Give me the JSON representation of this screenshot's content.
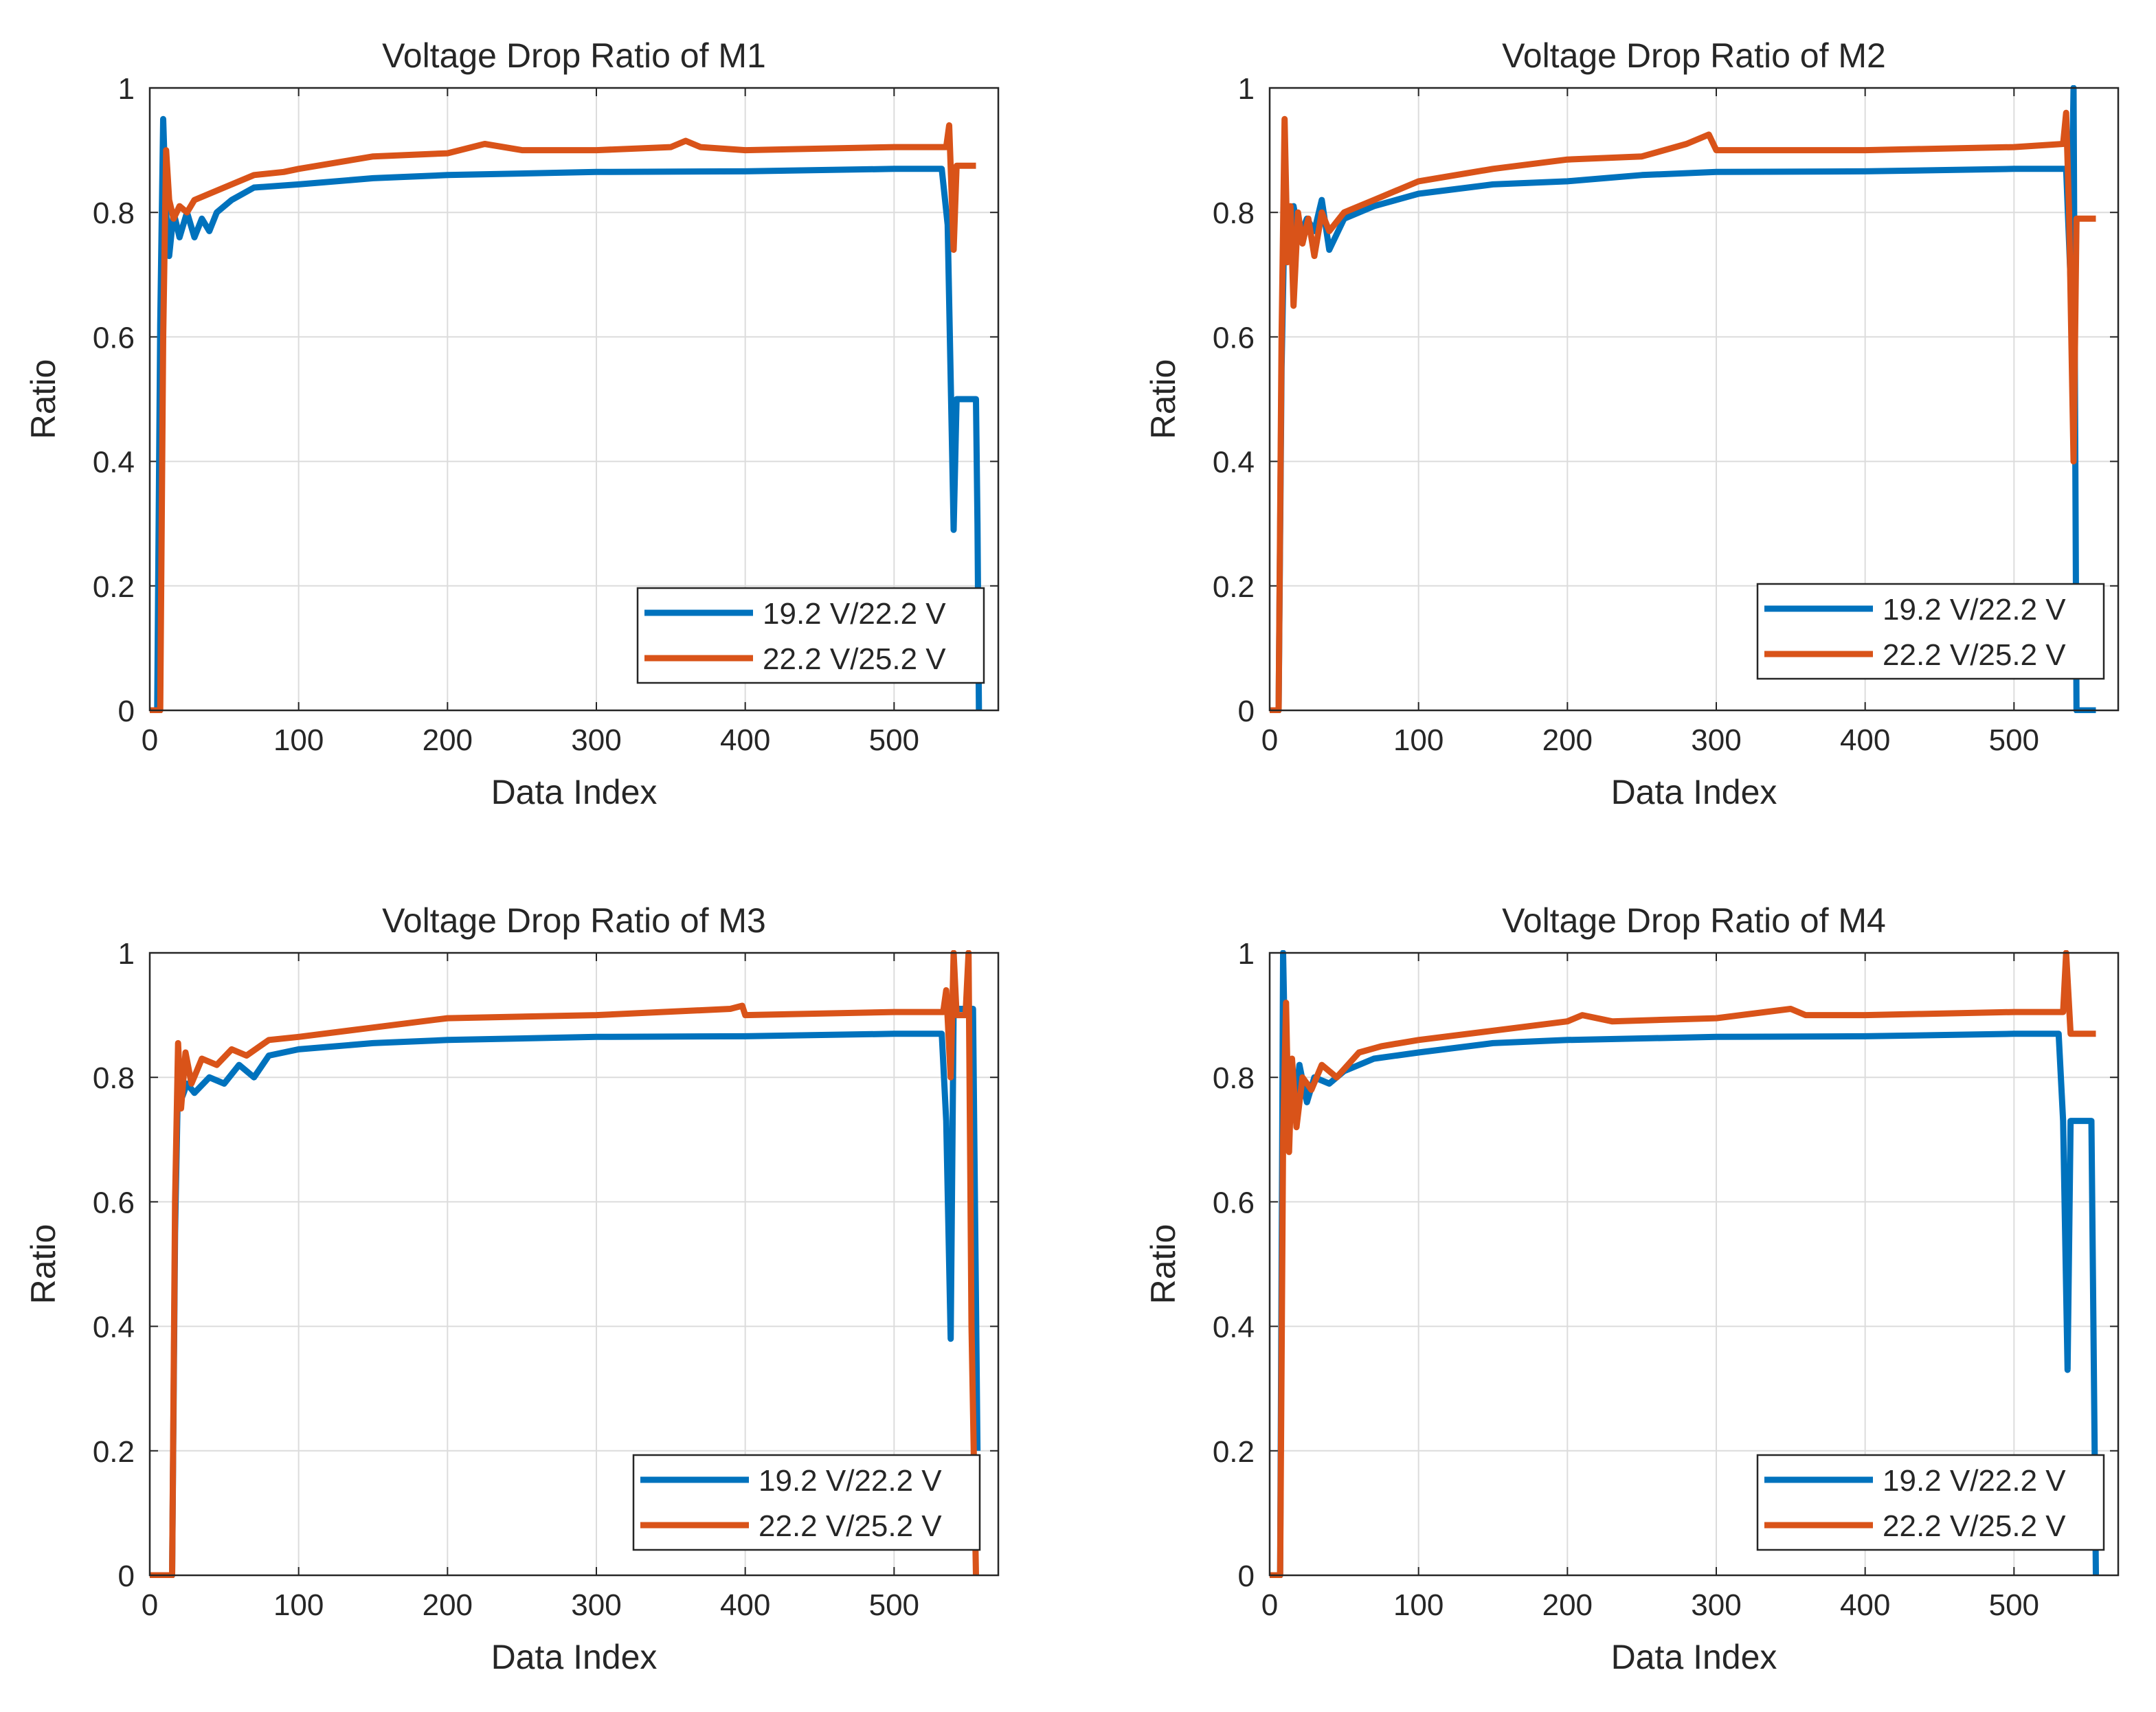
{
  "colors": {
    "series1": "#0072BD",
    "series2": "#D95319",
    "grid": "#DCDCDC",
    "axis": "#262626"
  },
  "chart_data": [
    {
      "type": "line",
      "title": "Voltage Drop Ratio of M1",
      "xlabel": "Data Index",
      "ylabel": "Ratio",
      "xlim": [
        0,
        570
      ],
      "ylim": [
        0,
        1
      ],
      "xticks": [
        "0",
        "100",
        "200",
        "300",
        "400",
        "500"
      ],
      "yticks": [
        "0",
        "0.2",
        "0.4",
        "0.6",
        "0.8",
        "1"
      ],
      "grid": true,
      "legend": "bottom-right",
      "series": [
        {
          "name": "19.2 V/22.2 V",
          "points": [
            [
              0,
              0
            ],
            [
              5,
              0
            ],
            [
              7,
              0.62
            ],
            [
              9,
              0.95
            ],
            [
              11,
              0.8
            ],
            [
              13,
              0.73
            ],
            [
              16,
              0.8
            ],
            [
              20,
              0.76
            ],
            [
              25,
              0.8
            ],
            [
              30,
              0.76
            ],
            [
              35,
              0.79
            ],
            [
              40,
              0.77
            ],
            [
              45,
              0.8
            ],
            [
              55,
              0.82
            ],
            [
              70,
              0.84
            ],
            [
              100,
              0.845
            ],
            [
              150,
              0.855
            ],
            [
              200,
              0.86
            ],
            [
              300,
              0.865
            ],
            [
              400,
              0.866
            ],
            [
              500,
              0.87
            ],
            [
              532,
              0.87
            ],
            [
              536,
              0.78
            ],
            [
              540,
              0.29
            ],
            [
              542,
              0.5
            ],
            [
              555,
              0.5
            ],
            [
              556,
              0.3
            ],
            [
              557,
              0
            ]
          ]
        },
        {
          "name": "22.2 V/25.2 V",
          "points": [
            [
              0,
              0
            ],
            [
              7,
              0
            ],
            [
              9,
              0.6
            ],
            [
              11,
              0.9
            ],
            [
              13,
              0.82
            ],
            [
              16,
              0.79
            ],
            [
              20,
              0.81
            ],
            [
              25,
              0.8
            ],
            [
              30,
              0.82
            ],
            [
              40,
              0.83
            ],
            [
              55,
              0.845
            ],
            [
              70,
              0.86
            ],
            [
              90,
              0.865
            ],
            [
              100,
              0.87
            ],
            [
              150,
              0.89
            ],
            [
              200,
              0.895
            ],
            [
              225,
              0.91
            ],
            [
              250,
              0.9
            ],
            [
              300,
              0.9
            ],
            [
              350,
              0.905
            ],
            [
              360,
              0.915
            ],
            [
              370,
              0.905
            ],
            [
              400,
              0.9
            ],
            [
              500,
              0.905
            ],
            [
              535,
              0.905
            ],
            [
              537,
              0.94
            ],
            [
              540,
              0.74
            ],
            [
              542,
              0.875
            ],
            [
              555,
              0.875
            ]
          ]
        }
      ]
    },
    {
      "type": "line",
      "title": "Voltage Drop Ratio of M2",
      "xlabel": "Data Index",
      "ylabel": "Ratio",
      "xlim": [
        0,
        570
      ],
      "ylim": [
        0,
        1
      ],
      "xticks": [
        "0",
        "100",
        "200",
        "300",
        "400",
        "500"
      ],
      "yticks": [
        "0",
        "0.2",
        "0.4",
        "0.6",
        "0.8",
        "1"
      ],
      "grid": true,
      "legend": "bottom-right",
      "series": [
        {
          "name": "19.2 V/22.2 V",
          "points": [
            [
              0,
              0
            ],
            [
              6,
              0
            ],
            [
              8,
              0.55
            ],
            [
              10,
              0.8
            ],
            [
              13,
              0.75
            ],
            [
              16,
              0.81
            ],
            [
              20,
              0.76
            ],
            [
              25,
              0.79
            ],
            [
              30,
              0.77
            ],
            [
              35,
              0.82
            ],
            [
              40,
              0.74
            ],
            [
              50,
              0.79
            ],
            [
              70,
              0.81
            ],
            [
              100,
              0.83
            ],
            [
              150,
              0.845
            ],
            [
              200,
              0.85
            ],
            [
              250,
              0.86
            ],
            [
              300,
              0.865
            ],
            [
              400,
              0.866
            ],
            [
              500,
              0.87
            ],
            [
              535,
              0.87
            ],
            [
              538,
              0.69
            ],
            [
              540,
              1.0
            ],
            [
              542,
              0.0
            ],
            [
              555,
              0.0
            ]
          ]
        },
        {
          "name": "22.2 V/25.2 V",
          "points": [
            [
              0,
              0
            ],
            [
              6,
              0
            ],
            [
              8,
              0.6
            ],
            [
              10,
              0.95
            ],
            [
              12,
              0.72
            ],
            [
              14,
              0.81
            ],
            [
              16,
              0.65
            ],
            [
              19,
              0.8
            ],
            [
              22,
              0.75
            ],
            [
              26,
              0.79
            ],
            [
              30,
              0.73
            ],
            [
              35,
              0.8
            ],
            [
              40,
              0.77
            ],
            [
              50,
              0.8
            ],
            [
              70,
              0.82
            ],
            [
              100,
              0.85
            ],
            [
              150,
              0.87
            ],
            [
              200,
              0.885
            ],
            [
              250,
              0.89
            ],
            [
              280,
              0.91
            ],
            [
              295,
              0.925
            ],
            [
              300,
              0.9
            ],
            [
              400,
              0.9
            ],
            [
              500,
              0.905
            ],
            [
              533,
              0.91
            ],
            [
              535,
              0.96
            ],
            [
              537,
              0.8
            ],
            [
              540,
              0.4
            ],
            [
              542,
              0.79
            ],
            [
              555,
              0.79
            ]
          ]
        }
      ]
    },
    {
      "type": "line",
      "title": "Voltage Drop Ratio of M3",
      "xlabel": "Data Index",
      "ylabel": "Ratio",
      "xlim": [
        0,
        570
      ],
      "ylim": [
        0,
        1
      ],
      "xticks": [
        "0",
        "100",
        "200",
        "300",
        "400",
        "500"
      ],
      "yticks": [
        "0",
        "0.2",
        "0.4",
        "0.6",
        "0.8",
        "1"
      ],
      "grid": true,
      "legend": "bottom-right",
      "series": [
        {
          "name": "19.2 V/22.2 V",
          "points": [
            [
              0,
              0
            ],
            [
              15,
              0
            ],
            [
              17,
              0.55
            ],
            [
              19,
              0.8
            ],
            [
              22,
              0.77
            ],
            [
              25,
              0.79
            ],
            [
              30,
              0.775
            ],
            [
              40,
              0.8
            ],
            [
              50,
              0.79
            ],
            [
              60,
              0.82
            ],
            [
              70,
              0.8
            ],
            [
              80,
              0.835
            ],
            [
              100,
              0.845
            ],
            [
              150,
              0.855
            ],
            [
              200,
              0.86
            ],
            [
              300,
              0.865
            ],
            [
              400,
              0.866
            ],
            [
              500,
              0.87
            ],
            [
              532,
              0.87
            ],
            [
              535,
              0.73
            ],
            [
              538,
              0.38
            ],
            [
              540,
              0.91
            ],
            [
              553,
              0.91
            ],
            [
              556,
              0.2
            ]
          ]
        },
        {
          "name": "22.2 V/25.2 V",
          "points": [
            [
              0,
              0
            ],
            [
              15,
              0
            ],
            [
              17,
              0.6
            ],
            [
              19,
              0.855
            ],
            [
              21,
              0.75
            ],
            [
              24,
              0.84
            ],
            [
              28,
              0.79
            ],
            [
              35,
              0.83
            ],
            [
              45,
              0.82
            ],
            [
              55,
              0.845
            ],
            [
              65,
              0.835
            ],
            [
              80,
              0.86
            ],
            [
              100,
              0.865
            ],
            [
              150,
              0.88
            ],
            [
              200,
              0.895
            ],
            [
              300,
              0.9
            ],
            [
              390,
              0.91
            ],
            [
              398,
              0.915
            ],
            [
              400,
              0.9
            ],
            [
              500,
              0.905
            ],
            [
              533,
              0.905
            ],
            [
              535,
              0.94
            ],
            [
              538,
              0.8
            ],
            [
              540,
              1.0
            ],
            [
              542,
              0.9
            ],
            [
              548,
              0.9
            ],
            [
              550,
              1.0
            ],
            [
              552,
              0.4
            ],
            [
              555,
              0.0
            ]
          ]
        }
      ]
    },
    {
      "type": "line",
      "title": "Voltage Drop Ratio of M4",
      "xlabel": "Data Index",
      "ylabel": "Ratio",
      "xlim": [
        0,
        570
      ],
      "ylim": [
        0,
        1
      ],
      "xticks": [
        "0",
        "100",
        "200",
        "300",
        "400",
        "500"
      ],
      "yticks": [
        "0",
        "0.2",
        "0.4",
        "0.6",
        "0.8",
        "1"
      ],
      "grid": true,
      "legend": "bottom-right",
      "series": [
        {
          "name": "19.2 V/22.2 V",
          "points": [
            [
              0,
              0
            ],
            [
              7,
              0
            ],
            [
              9,
              1.0
            ],
            [
              11,
              0.75
            ],
            [
              14,
              0.81
            ],
            [
              17,
              0.75
            ],
            [
              20,
              0.82
            ],
            [
              25,
              0.76
            ],
            [
              30,
              0.8
            ],
            [
              40,
              0.79
            ],
            [
              50,
              0.81
            ],
            [
              70,
              0.83
            ],
            [
              100,
              0.84
            ],
            [
              150,
              0.855
            ],
            [
              200,
              0.86
            ],
            [
              300,
              0.865
            ],
            [
              400,
              0.866
            ],
            [
              500,
              0.87
            ],
            [
              530,
              0.87
            ],
            [
              533,
              0.73
            ],
            [
              536,
              0.33
            ],
            [
              538,
              0.73
            ],
            [
              552,
              0.73
            ],
            [
              555,
              0.0
            ]
          ]
        },
        {
          "name": "22.2 V/25.2 V",
          "points": [
            [
              0,
              0
            ],
            [
              7,
              0
            ],
            [
              9,
              0.7
            ],
            [
              11,
              0.92
            ],
            [
              13,
              0.68
            ],
            [
              15,
              0.83
            ],
            [
              18,
              0.72
            ],
            [
              22,
              0.8
            ],
            [
              28,
              0.78
            ],
            [
              35,
              0.82
            ],
            [
              45,
              0.8
            ],
            [
              60,
              0.84
            ],
            [
              75,
              0.85
            ],
            [
              100,
              0.86
            ],
            [
              150,
              0.875
            ],
            [
              200,
              0.89
            ],
            [
              210,
              0.9
            ],
            [
              230,
              0.89
            ],
            [
              300,
              0.895
            ],
            [
              350,
              0.91
            ],
            [
              360,
              0.9
            ],
            [
              400,
              0.9
            ],
            [
              500,
              0.905
            ],
            [
              533,
              0.905
            ],
            [
              535,
              1.0
            ],
            [
              538,
              0.87
            ],
            [
              555,
              0.87
            ]
          ]
        }
      ]
    }
  ]
}
